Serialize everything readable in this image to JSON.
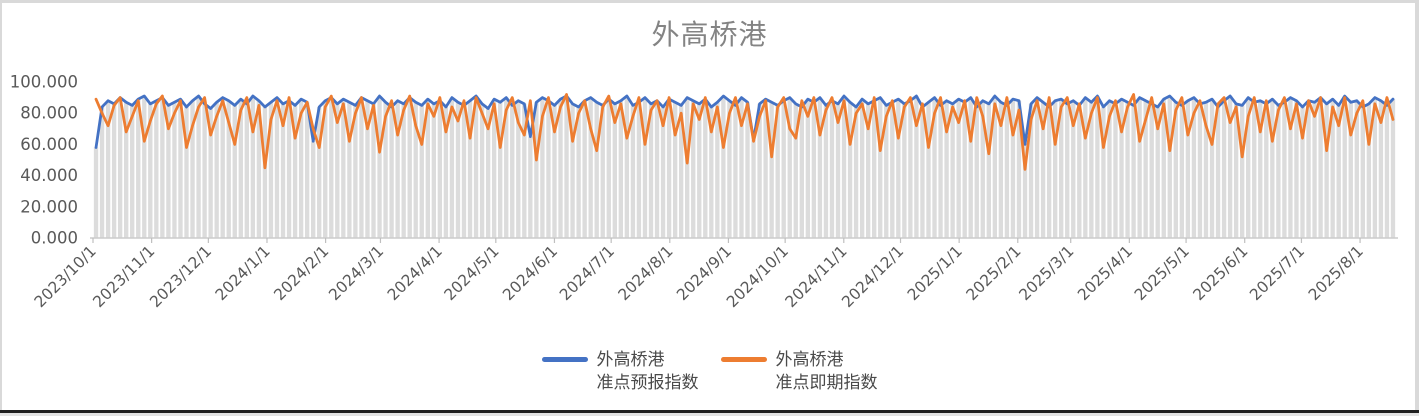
{
  "window": {
    "border_color": "#D9D9D9",
    "bottom_bar_color": "#1F1F1F",
    "bottom_strip_color": "#E2E2E2"
  },
  "chart_data": {
    "type": "line",
    "title": "外高桥港",
    "title_color": "#848484",
    "grid": "off",
    "legend_position": "bottom",
    "ylim": [
      0,
      100
    ],
    "y_tick_labels": [
      "0.000",
      "20.000",
      "40.000",
      "60.000",
      "80.000",
      "100.000"
    ],
    "x_start_date": "2023/10/1",
    "x_end_date": "2025/8/20",
    "x_tick_labels": [
      "2023/10/1",
      "2023/11/1",
      "2023/12/1",
      "2024/1/1",
      "2024/2/1",
      "2024/3/1",
      "2024/4/1",
      "2024/5/1",
      "2024/6/1",
      "2024/7/1",
      "2024/8/1",
      "2024/9/1",
      "2024/10/1",
      "2024/11/1",
      "2024/12/1",
      "2025/1/1",
      "2025/2/1",
      "2025/3/1",
      "2025/4/1",
      "2025/5/1",
      "2025/6/1",
      "2025/7/1",
      "2025/8/1"
    ],
    "background_columns": {
      "color": "#DCDCDC",
      "description": "light gray column per data point, height follows 准点预报指数 values"
    },
    "series": [
      {
        "name": "外高桥港准点预报指数",
        "name_line1": "外高桥港",
        "name_line2": "准点预报指数",
        "color": "#4472C4",
        "values": [
          58,
          84,
          88,
          86,
          90,
          87,
          85,
          89,
          91,
          86,
          88,
          90,
          85,
          87,
          89,
          84,
          88,
          91,
          86,
          83,
          87,
          90,
          88,
          85,
          89,
          86,
          91,
          88,
          84,
          87,
          90,
          86,
          88,
          85,
          89,
          87,
          62,
          84,
          88,
          90,
          86,
          89,
          87,
          85,
          90,
          88,
          86,
          91,
          87,
          84,
          88,
          86,
          90,
          87,
          85,
          89,
          86,
          88,
          84,
          90,
          87,
          85,
          88,
          91,
          86,
          83,
          89,
          87,
          90,
          85,
          88,
          86,
          65,
          87,
          90,
          88,
          85,
          89,
          91,
          86,
          84,
          88,
          90,
          87,
          85,
          89,
          86,
          88,
          91,
          85,
          87,
          90,
          86,
          88,
          84,
          89,
          87,
          85,
          90,
          88,
          86,
          89,
          84,
          87,
          91,
          88,
          85,
          90,
          87,
          63,
          86,
          89,
          87,
          85,
          88,
          90,
          86,
          84,
          89,
          87,
          90,
          85,
          88,
          86,
          91,
          87,
          84,
          89,
          86,
          88,
          90,
          85,
          87,
          89,
          86,
          88,
          91,
          84,
          87,
          90,
          85,
          88,
          86,
          89,
          87,
          90,
          84,
          88,
          86,
          91,
          87,
          85,
          89,
          88,
          60,
          86,
          90,
          87,
          84,
          88,
          89,
          86,
          88,
          85,
          90,
          87,
          91,
          84,
          88,
          86,
          89,
          87,
          85,
          90,
          88,
          86,
          84,
          89,
          91,
          87,
          85,
          88,
          90,
          86,
          87,
          89,
          84,
          88,
          91,
          86,
          85,
          90,
          87,
          88,
          86,
          89,
          85,
          87,
          90,
          88,
          84,
          88,
          87,
          90,
          86,
          89,
          85,
          91,
          87,
          88,
          84,
          86,
          90,
          88,
          85,
          89
        ]
      },
      {
        "name": "外高桥港准点即期指数",
        "name_line1": "外高桥港",
        "name_line2": "准点即期指数",
        "color": "#ED7D31",
        "values": [
          89,
          80,
          72,
          85,
          90,
          68,
          78,
          88,
          62,
          75,
          86,
          91,
          70,
          80,
          88,
          58,
          72,
          84,
          90,
          66,
          78,
          88,
          74,
          60,
          82,
          90,
          68,
          85,
          45,
          76,
          88,
          72,
          90,
          64,
          80,
          87,
          70,
          58,
          84,
          91,
          74,
          86,
          62,
          80,
          90,
          70,
          85,
          55,
          78,
          88,
          66,
          82,
          91,
          72,
          60,
          86,
          78,
          90,
          68,
          84,
          75,
          88,
          64,
          90,
          80,
          70,
          86,
          58,
          82,
          90,
          74,
          66,
          88,
          50,
          78,
          90,
          68,
          84,
          92,
          62,
          80,
          88,
          70,
          56,
          84,
          91,
          74,
          86,
          64,
          78,
          90,
          60,
          82,
          88,
          72,
          90,
          66,
          80,
          48,
          86,
          76,
          90,
          68,
          84,
          58,
          80,
          90,
          72,
          86,
          62,
          78,
          88,
          52,
          84,
          90,
          70,
          64,
          88,
          78,
          90,
          66,
          82,
          90,
          74,
          88,
          60,
          80,
          86,
          70,
          90,
          56,
          78,
          88,
          64,
          84,
          90,
          72,
          86,
          58,
          80,
          90,
          68,
          84,
          74,
          88,
          62,
          90,
          78,
          54,
          86,
          72,
          90,
          66,
          82,
          44,
          76,
          88,
          70,
          90,
          60,
          84,
          90,
          72,
          86,
          64,
          80,
          90,
          58,
          78,
          88,
          68,
          84,
          92,
          62,
          76,
          90,
          70,
          86,
          56,
          82,
          90,
          66,
          80,
          88,
          72,
          60,
          86,
          90,
          74,
          84,
          52,
          78,
          90,
          68,
          88,
          62,
          82,
          90,
          70,
          86,
          64,
          88,
          78,
          90,
          56,
          84,
          72,
          90,
          66,
          80,
          88,
          60,
          86,
          74,
          90,
          76
        ]
      }
    ],
    "axis_colors": {
      "axis_line": "#CBCBCB",
      "tick_mark": "#BFBFBF",
      "tick_label": "#595959"
    }
  }
}
